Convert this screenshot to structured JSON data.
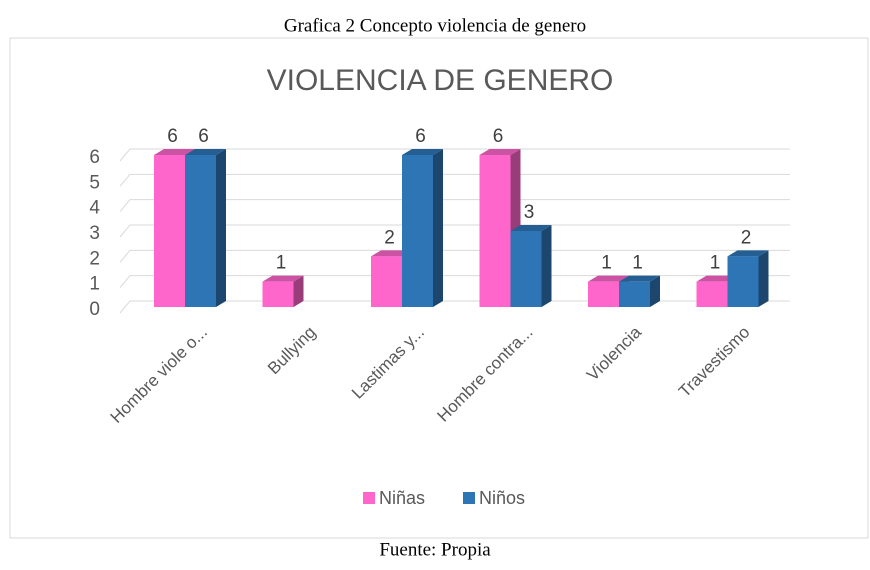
{
  "caption": "Grafica 2 Concepto violencia de genero",
  "source": "Fuente: Propia",
  "chart_data": {
    "type": "bar3d",
    "title": "VIOLENCIA DE GENERO",
    "categories": [
      "Hombre viole o...",
      "Bullying",
      "Lastimas y...",
      "Hombre contra...",
      "Violencia",
      "Travestismo"
    ],
    "series": [
      {
        "name": "Niñas",
        "color": "#ff66cc",
        "values": [
          6,
          1,
          2,
          6,
          1,
          1
        ]
      },
      {
        "name": "Niños",
        "color": "#2e75b6",
        "values": [
          6,
          null,
          6,
          3,
          1,
          2
        ]
      }
    ],
    "ylim": [
      0,
      6
    ],
    "yticks": [
      0,
      1,
      2,
      3,
      4,
      5,
      6
    ],
    "grid": true,
    "legend": "bottom"
  }
}
